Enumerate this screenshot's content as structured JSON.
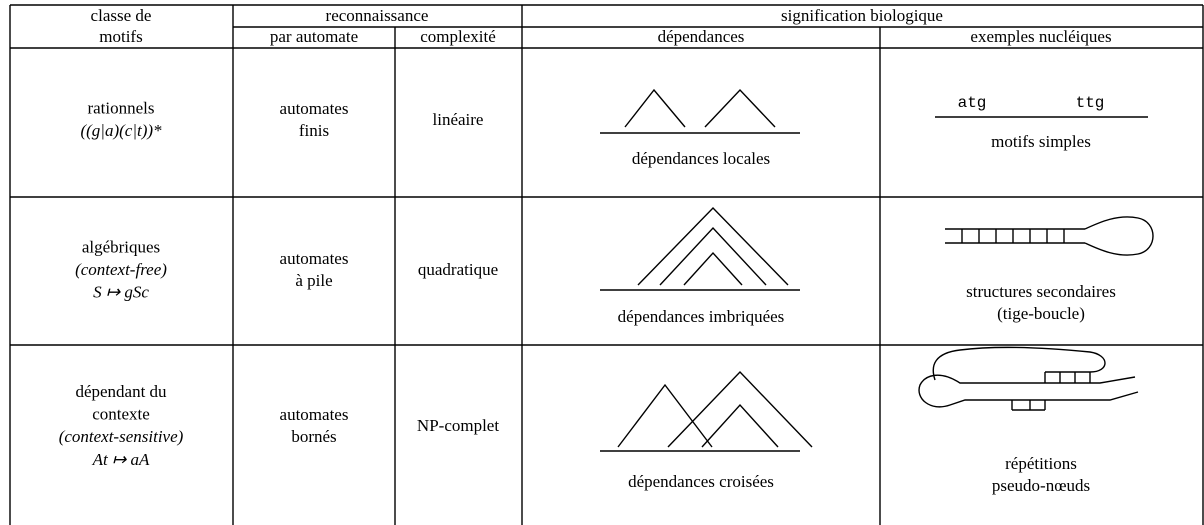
{
  "header": {
    "class": [
      "classe de",
      "motifs"
    ],
    "recognition": "reconnaissance",
    "automaton": "par automate",
    "complexity": "complexité",
    "meaning": "signification biologique",
    "dependencies": "dépendances",
    "examples": "exemples nucléiques"
  },
  "rows": [
    {
      "name": [
        "rationnels"
      ],
      "rule": "((g|a)(c|t))*",
      "automaton": [
        "automates",
        "finis"
      ],
      "complexity": "linéaire",
      "dependency": "dépendances locales",
      "sequence": [
        "atg",
        "ttg"
      ],
      "example": [
        "motifs simples"
      ]
    },
    {
      "name": [
        "algébriques"
      ],
      "alias": "(context-free)",
      "rule": "S ↦ gSc",
      "automaton": [
        "automates",
        "à pile"
      ],
      "complexity": "quadratique",
      "dependency": "dépendances imbriquées",
      "example": [
        "structures secondaires",
        "(tige-boucle)"
      ]
    },
    {
      "name": [
        "dépendant du",
        "contexte"
      ],
      "alias": "(context-sensitive)",
      "rule": "At ↦ aA",
      "automaton": [
        "automates",
        "bornés"
      ],
      "complexity": "NP-complet",
      "dependency": "dépendances croisées",
      "example": [
        "répétitions",
        "pseudo-nœuds"
      ]
    }
  ]
}
